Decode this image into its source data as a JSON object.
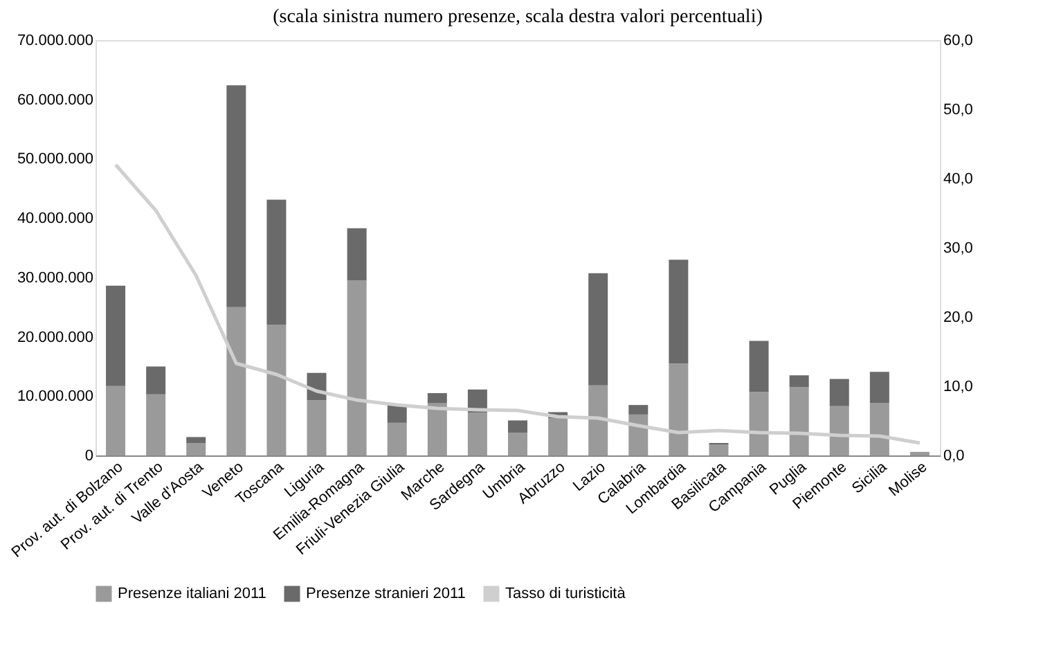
{
  "chart_data": {
    "type": "bar",
    "stacked": true,
    "title": "(scala sinistra numero presenze, scala destra valori percentuali)",
    "categories": [
      "Prov. aut. di Bolzano",
      "Prov. aut. di Trento",
      "Valle d'Aosta",
      "Veneto",
      "Toscana",
      "Liguria",
      "Emilia-Romagna",
      "Friuli-Venezia Giulia",
      "Marche",
      "Sardegna",
      "Umbria",
      "Abruzzo",
      "Lazio",
      "Calabria",
      "Lombardia",
      "Basilicata",
      "Campania",
      "Puglia",
      "Piemonte",
      "Sicilia",
      "Molise"
    ],
    "series": [
      {
        "name": "Presenze italiani 2011",
        "color": "#9a9a9a",
        "values": [
          11700000,
          10300000,
          2100000,
          25000000,
          22000000,
          9300000,
          29500000,
          5500000,
          8800000,
          7200000,
          3800000,
          6300000,
          11800000,
          6900000,
          15500000,
          1800000,
          10700000,
          11500000,
          8300000,
          8800000,
          600000
        ]
      },
      {
        "name": "Presenze stranieri 2011",
        "color": "#6a6a6a",
        "values": [
          16900000,
          4700000,
          1000000,
          37400000,
          21100000,
          4600000,
          8800000,
          3000000,
          1700000,
          3900000,
          2100000,
          1000000,
          18900000,
          1600000,
          17500000,
          300000,
          8600000,
          2000000,
          4600000,
          5300000,
          null
        ]
      },
      {
        "name": "Tasso di turisticità",
        "type": "line",
        "axis": "y2",
        "color": "#cfcfcf",
        "values": [
          42,
          35.4,
          26,
          13.3,
          11.7,
          9.3,
          8,
          7.3,
          6.8,
          6.6,
          6.5,
          5.6,
          5.4,
          4.3,
          3.3,
          3.6,
          3.3,
          3.2,
          2.9,
          2.8,
          1.8
        ]
      }
    ],
    "ylim": [
      0,
      70000000
    ],
    "yticks": [
      {
        "value": 0,
        "label": "0"
      },
      {
        "value": 10000000,
        "label": "10.000.000"
      },
      {
        "value": 20000000,
        "label": "20.000.000"
      },
      {
        "value": 30000000,
        "label": "30.000.000"
      },
      {
        "value": 40000000,
        "label": "40.000.000"
      },
      {
        "value": 50000000,
        "label": "50.000.000"
      },
      {
        "value": 60000000,
        "label": "60.000.000"
      },
      {
        "value": 70000000,
        "label": "70.000.000"
      }
    ],
    "y2lim": [
      0,
      60
    ],
    "y2ticks": [
      {
        "value": 0,
        "label": "0,0"
      },
      {
        "value": 10,
        "label": "10,0"
      },
      {
        "value": 20,
        "label": "20,0"
      },
      {
        "value": 30,
        "label": "30,0"
      },
      {
        "value": 40,
        "label": "40,0"
      },
      {
        "value": 50,
        "label": "50,0"
      },
      {
        "value": 60,
        "label": "60,0"
      }
    ],
    "legend": "bottom",
    "grid": false
  }
}
